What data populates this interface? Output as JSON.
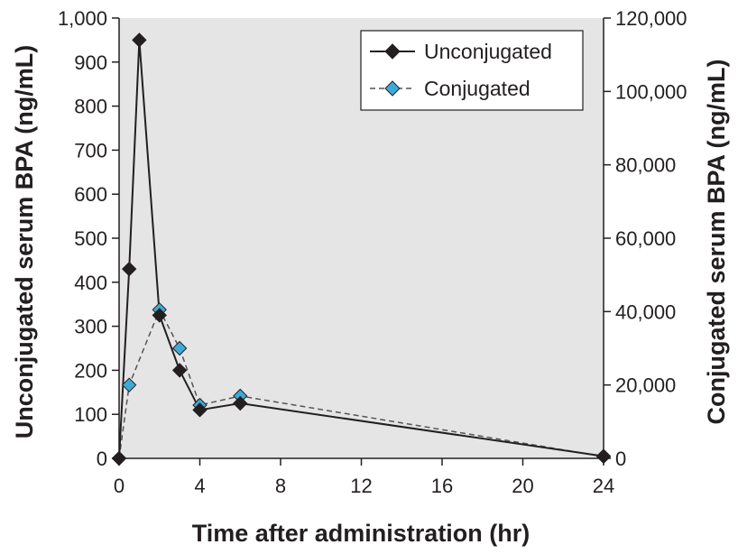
{
  "chart_data": {
    "type": "line",
    "title": "",
    "xlabel": "Time after administration (hr)",
    "ylabel_left": "Unconjugated serum BPA (ng/mL)",
    "ylabel_right": "Conjugated serum BPA (ng/mL)",
    "xlim": [
      0,
      24
    ],
    "ylim_left": [
      0,
      1000
    ],
    "ylim_right": [
      0,
      120000
    ],
    "x_ticks": [
      0,
      4,
      8,
      12,
      16,
      20,
      24
    ],
    "x_tick_labels": [
      "0",
      "4",
      "8",
      "12",
      "16",
      "20",
      "24"
    ],
    "y_left_ticks": [
      0,
      100,
      200,
      300,
      400,
      500,
      600,
      700,
      800,
      900,
      1000
    ],
    "y_left_tick_labels": [
      "0",
      "100",
      "200",
      "300",
      "400",
      "500",
      "600",
      "700",
      "800",
      "900",
      "1,000"
    ],
    "y_right_ticks": [
      0,
      20000,
      40000,
      60000,
      80000,
      100000,
      120000
    ],
    "y_right_tick_labels": [
      "0",
      "20,000",
      "40,000",
      "60,000",
      "80,000",
      "100,000",
      "120,000"
    ],
    "grid": false,
    "background": "#e5e5e5",
    "legend_position": "top-right",
    "series": [
      {
        "name": "Unconjugated",
        "axis": "left",
        "color": "#231f20",
        "line_style": "solid",
        "marker": "diamond",
        "x": [
          0,
          0.5,
          1,
          2,
          3,
          4,
          6,
          24
        ],
        "y": [
          0,
          430,
          950,
          325,
          200,
          110,
          125,
          5
        ]
      },
      {
        "name": "Conjugated",
        "axis": "right",
        "color": "#3fa9d6",
        "line_color": "#555555",
        "line_style": "dashed",
        "marker": "diamond",
        "x": [
          0,
          0.5,
          2,
          3,
          4,
          6,
          24
        ],
        "y": [
          0,
          20000,
          40500,
          30000,
          14500,
          17000,
          500
        ]
      }
    ]
  }
}
